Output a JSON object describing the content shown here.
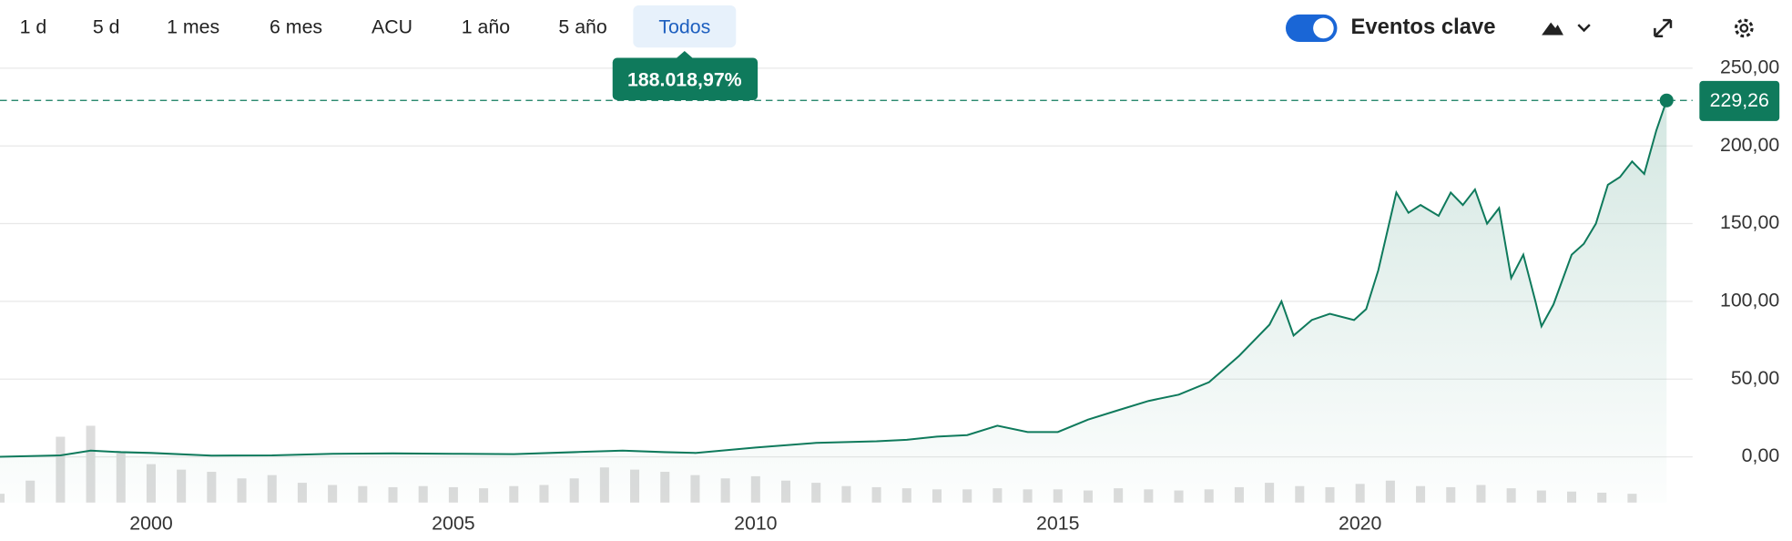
{
  "range_buttons": [
    "1 d",
    "5 d",
    "1 mes",
    "6 mes",
    "ACU",
    "1 año",
    "5 año",
    "Todos"
  ],
  "selected_range": 7,
  "toggle_label": "Eventos clave",
  "chart_data": {
    "type": "line",
    "change": {
      "value": 188018.97,
      "label": "188.018,97%"
    },
    "xlim": [
      1997.5,
      2025.5
    ],
    "xticks": [
      2000,
      2005,
      2010,
      2015,
      2020
    ],
    "ylim": [
      -29.4,
      250
    ],
    "yticks": [
      {
        "value": 0,
        "label": "0,00"
      },
      {
        "value": 50,
        "label": "50,00"
      },
      {
        "value": 100,
        "label": "100,00"
      },
      {
        "value": 150,
        "label": "150,00"
      },
      {
        "value": 200,
        "label": "200,00"
      },
      {
        "value": 250,
        "label": "250,00"
      }
    ],
    "grid": true,
    "series": [
      {
        "color": "#0f7a5c",
        "x": [
          1997.5,
          1998.5,
          1999.0,
          1999.5,
          2000,
          2001,
          2002,
          2003,
          2004,
          2005,
          2006,
          2007,
          2007.8,
          2008.5,
          2009,
          2010,
          2011,
          2012,
          2012.5,
          2013,
          2013.5,
          2014,
          2014.5,
          2015,
          2015.5,
          2016,
          2016.5,
          2017,
          2017.5,
          2018,
          2018.5,
          2018.7,
          2018.9,
          2019.2,
          2019.5,
          2019.9,
          2020.1,
          2020.3,
          2020.6,
          2020.8,
          2021.0,
          2021.3,
          2021.5,
          2021.7,
          2021.9,
          2022.1,
          2022.3,
          2022.5,
          2022.7,
          2022.9,
          2023.0,
          2023.2,
          2023.5,
          2023.7,
          2023.9,
          2024.1,
          2024.3,
          2024.5,
          2024.7,
          2024.9,
          2025.07
        ],
        "values": [
          0.1,
          1,
          4,
          3,
          2.5,
          0.8,
          1,
          2,
          2.2,
          2,
          1.8,
          3,
          4,
          3,
          2.5,
          6,
          9,
          10,
          11,
          13,
          14,
          20,
          16,
          16,
          24,
          30,
          36,
          40,
          48,
          65,
          85,
          100,
          78,
          88,
          92,
          88,
          95,
          120,
          170,
          157,
          162,
          155,
          170,
          162,
          172,
          150,
          160,
          115,
          130,
          100,
          84,
          98,
          130,
          137,
          150,
          175,
          180,
          190,
          182,
          210,
          229.26
        ],
        "value_labels": [
          null,
          null,
          null,
          null,
          null,
          null,
          null,
          null,
          null,
          null,
          null,
          null,
          null,
          null,
          null,
          null,
          null,
          null,
          null,
          null,
          null,
          null,
          null,
          null,
          null,
          null,
          null,
          null,
          null,
          null,
          null,
          null,
          null,
          null,
          null,
          null,
          null,
          null,
          null,
          null,
          null,
          null,
          null,
          null,
          null,
          null,
          null,
          null,
          null,
          null,
          null,
          null,
          null,
          null,
          null,
          null,
          null,
          null,
          null,
          null,
          "229,26"
        ]
      }
    ],
    "volume": {
      "color": "#dcdcdc",
      "ylim": [
        0,
        100
      ],
      "x": [
        1997.5,
        1998,
        1998.5,
        1999,
        1999.5,
        2000,
        2000.5,
        2001,
        2001.5,
        2002,
        2002.5,
        2003,
        2003.5,
        2004,
        2004.5,
        2005,
        2005.5,
        2006,
        2006.5,
        2007,
        2007.5,
        2008,
        2008.5,
        2009,
        2009.5,
        2010,
        2010.5,
        2011,
        2011.5,
        2012,
        2012.5,
        2013,
        2013.5,
        2014,
        2014.5,
        2015,
        2015.5,
        2016,
        2016.5,
        2017,
        2017.5,
        2018,
        2018.5,
        2019,
        2019.5,
        2020,
        2020.5,
        2021,
        2021.5,
        2022,
        2022.5,
        2023,
        2023.5,
        2024,
        2024.5
      ],
      "values": [
        8,
        20,
        60,
        70,
        45,
        35,
        30,
        28,
        22,
        25,
        18,
        16,
        15,
        14,
        15,
        14,
        13,
        15,
        16,
        22,
        32,
        30,
        28,
        25,
        22,
        24,
        20,
        18,
        15,
        14,
        13,
        12,
        12,
        13,
        12,
        12,
        11,
        13,
        12,
        11,
        12,
        14,
        18,
        15,
        14,
        17,
        20,
        15,
        14,
        16,
        13,
        11,
        10,
        9,
        8
      ]
    }
  }
}
